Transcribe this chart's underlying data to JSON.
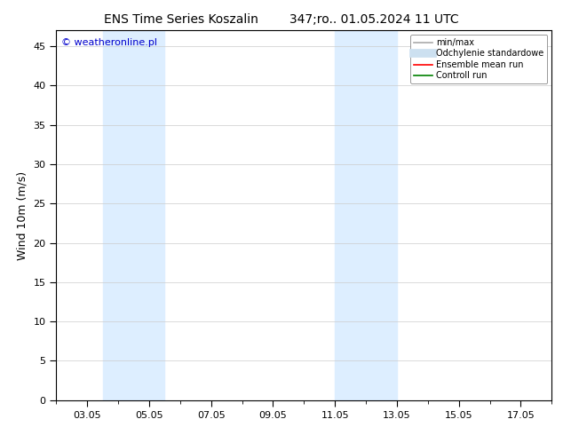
{
  "title_left": "ENS Time Series Koszalin",
  "title_right": "347;ro.. 01.05.2024 11 UTC",
  "ylabel": "Wind 10m (m/s)",
  "ylim": [
    0,
    47
  ],
  "yticks": [
    0,
    5,
    10,
    15,
    20,
    25,
    30,
    35,
    40,
    45
  ],
  "xstart_day": 2,
  "xend_day": 18,
  "xtick_days": [
    3,
    5,
    7,
    9,
    11,
    13,
    15,
    17
  ],
  "xtick_labels": [
    "03.05",
    "05.05",
    "07.05",
    "09.05",
    "11.05",
    "13.05",
    "15.05",
    "17.05"
  ],
  "bg_color": "#ffffff",
  "plot_bg_color": "#ffffff",
  "shaded_bands": [
    {
      "x_start": 3.5,
      "x_end": 5.5,
      "color": "#ddeeff"
    },
    {
      "x_start": 11.0,
      "x_end": 13.0,
      "color": "#ddeeff"
    }
  ],
  "watermark_text": "© weatheronline.pl",
  "watermark_color": "#0000cc",
  "legend_entries": [
    {
      "label": "min/max",
      "color": "#aaaaaa",
      "lw": 1.2,
      "style": "solid"
    },
    {
      "label": "Odchylenie standardowe",
      "color": "#cce0f0",
      "lw": 7,
      "style": "solid"
    },
    {
      "label": "Ensemble mean run",
      "color": "#ff0000",
      "lw": 1.2,
      "style": "solid"
    },
    {
      "label": "Controll run",
      "color": "#008000",
      "lw": 1.2,
      "style": "solid"
    }
  ],
  "title_fontsize": 10,
  "tick_fontsize": 8,
  "ylabel_fontsize": 9,
  "watermark_fontsize": 8
}
